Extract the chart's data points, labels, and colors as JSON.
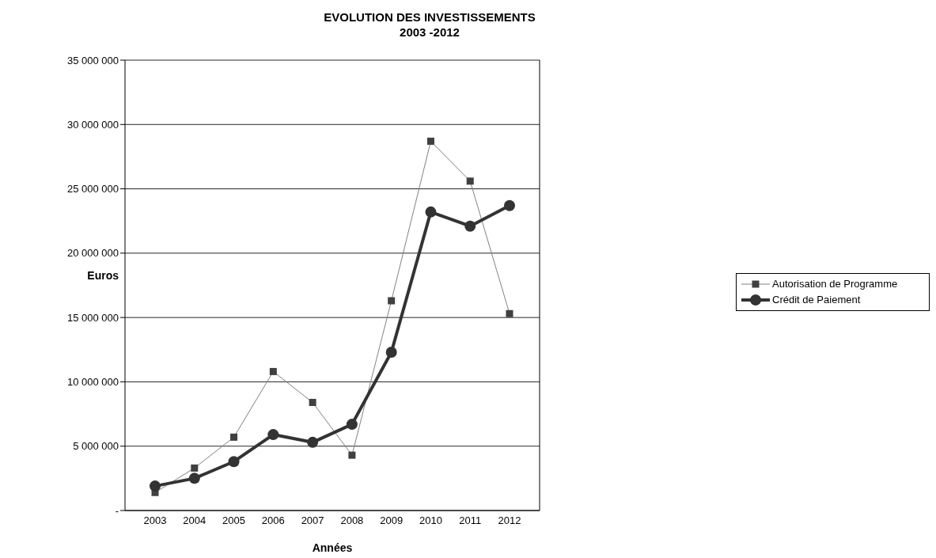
{
  "chart_data": {
    "type": "line",
    "title": "EVOLUTION DES INVESTISSEMENTS\n2003 -2012",
    "xlabel": "Années",
    "ylabel": "Euros",
    "categories": [
      "2003",
      "2004",
      "2005",
      "2006",
      "2007",
      "2008",
      "2009",
      "2010",
      "2011",
      "2012"
    ],
    "series": [
      {
        "name": "Autorisation de Programme",
        "color": "#404040",
        "marker": "square",
        "values": [
          1400000,
          3300000,
          5700000,
          10800000,
          8400000,
          4300000,
          16300000,
          28700000,
          25600000,
          15300000
        ]
      },
      {
        "name": "Crédit de Paiement",
        "color": "#333333",
        "marker": "circle",
        "values": [
          1900000,
          2500000,
          3800000,
          5900000,
          5300000,
          6700000,
          12300000,
          23200000,
          22100000,
          23700000
        ]
      }
    ],
    "ylim": [
      0,
      35000000
    ],
    "yticks": [
      {
        "value": 0,
        "label": "-"
      },
      {
        "value": 5000000,
        "label": "5 000 000"
      },
      {
        "value": 10000000,
        "label": "10 000 000"
      },
      {
        "value": 15000000,
        "label": "15 000 000"
      },
      {
        "value": 20000000,
        "label": "20 000 000"
      },
      {
        "value": 25000000,
        "label": "25 000 000"
      },
      {
        "value": 30000000,
        "label": "30 000 000"
      },
      {
        "value": 35000000,
        "label": "35 000 000"
      }
    ],
    "grid": "y",
    "legend": "right"
  }
}
